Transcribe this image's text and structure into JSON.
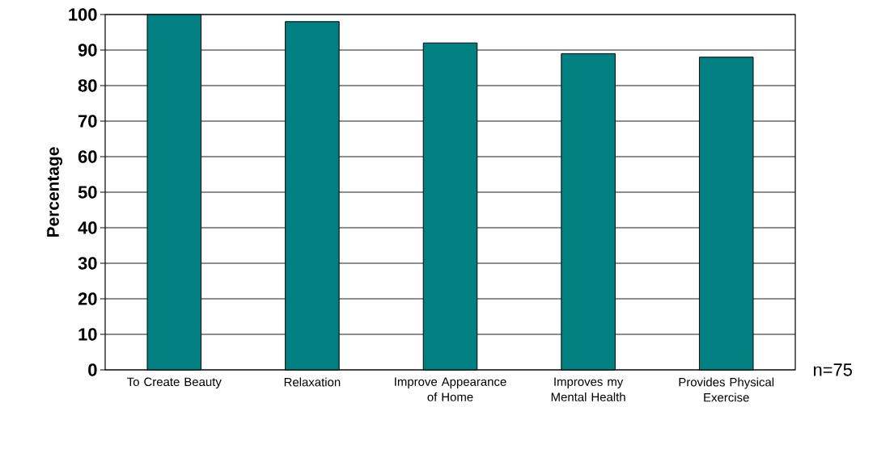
{
  "chart_data": {
    "type": "bar",
    "categories": [
      "To Create Beauty",
      "Relaxation",
      "Improve Appearance of Home",
      "Improves my Mental Health",
      "Provides Physical Exercise"
    ],
    "values": [
      100,
      98,
      92,
      89,
      88
    ],
    "color": "#008080",
    "ylabel": "Percentage",
    "ylim": [
      0,
      100
    ],
    "yticks": [
      0,
      10,
      20,
      30,
      40,
      50,
      60,
      70,
      80,
      90,
      100
    ],
    "grid": "y",
    "annotations": [
      "n=75"
    ]
  }
}
